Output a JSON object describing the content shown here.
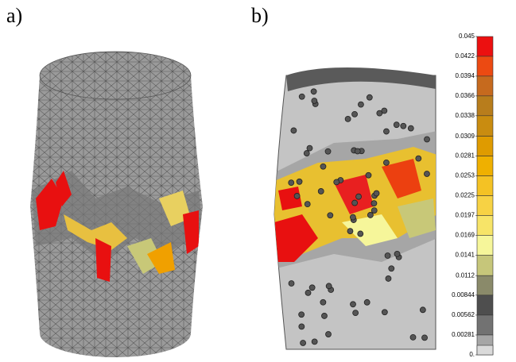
{
  "panels": [
    {
      "label": "a)"
    },
    {
      "label": "b)"
    }
  ],
  "legend": {
    "ticks": [
      0.045,
      0.0422,
      0.0394,
      0.0366,
      0.0338,
      0.0309,
      0.0281,
      0.0253,
      0.0225,
      0.0197,
      0.0169,
      0.0141,
      0.0112,
      0.00844,
      0.00562,
      0.00281,
      {
        "value": 0,
        "label": "0."
      }
    ],
    "colors": [
      "#ec1010",
      "#ec4a12",
      "#c66a1e",
      "#b87d1c",
      "#c98c10",
      "#df9b00",
      "#efb000",
      "#f4c224",
      "#f7d244",
      "#f7e468",
      "#f6f69a",
      "#c6c67a",
      "#8a8a6a",
      "#4e4e4e",
      "#727272",
      "#a6a6a6",
      "#dadada"
    ]
  }
}
